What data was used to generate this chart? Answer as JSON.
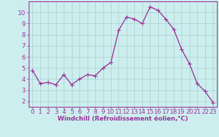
{
  "x": [
    0,
    1,
    2,
    3,
    4,
    5,
    6,
    7,
    8,
    9,
    10,
    11,
    12,
    13,
    14,
    15,
    16,
    17,
    18,
    19,
    20,
    21,
    22,
    23
  ],
  "y": [
    4.8,
    3.6,
    3.7,
    3.5,
    4.4,
    3.5,
    4.0,
    4.4,
    4.3,
    5.0,
    5.5,
    8.4,
    9.6,
    9.4,
    9.0,
    10.5,
    10.2,
    9.4,
    8.5,
    6.7,
    5.4,
    3.6,
    2.9,
    1.9
  ],
  "line_color": "#993399",
  "marker": "+",
  "marker_size": 4,
  "bg_color": "#cceeee",
  "grid_color": "#aacccc",
  "xlabel": "Windchill (Refroidissement éolien,°C)",
  "xlabel_color": "#993399",
  "tick_color": "#993399",
  "xlim": [
    -0.5,
    23.5
  ],
  "ylim": [
    1.5,
    11.0
  ],
  "yticks": [
    2,
    3,
    4,
    5,
    6,
    7,
    8,
    9,
    10
  ],
  "xticks": [
    0,
    1,
    2,
    3,
    4,
    5,
    6,
    7,
    8,
    9,
    10,
    11,
    12,
    13,
    14,
    15,
    16,
    17,
    18,
    19,
    20,
    21,
    22,
    23
  ],
  "spine_color": "#993399",
  "font_size": 6.5,
  "line_width": 1.0,
  "marker_edge_width": 0.8
}
